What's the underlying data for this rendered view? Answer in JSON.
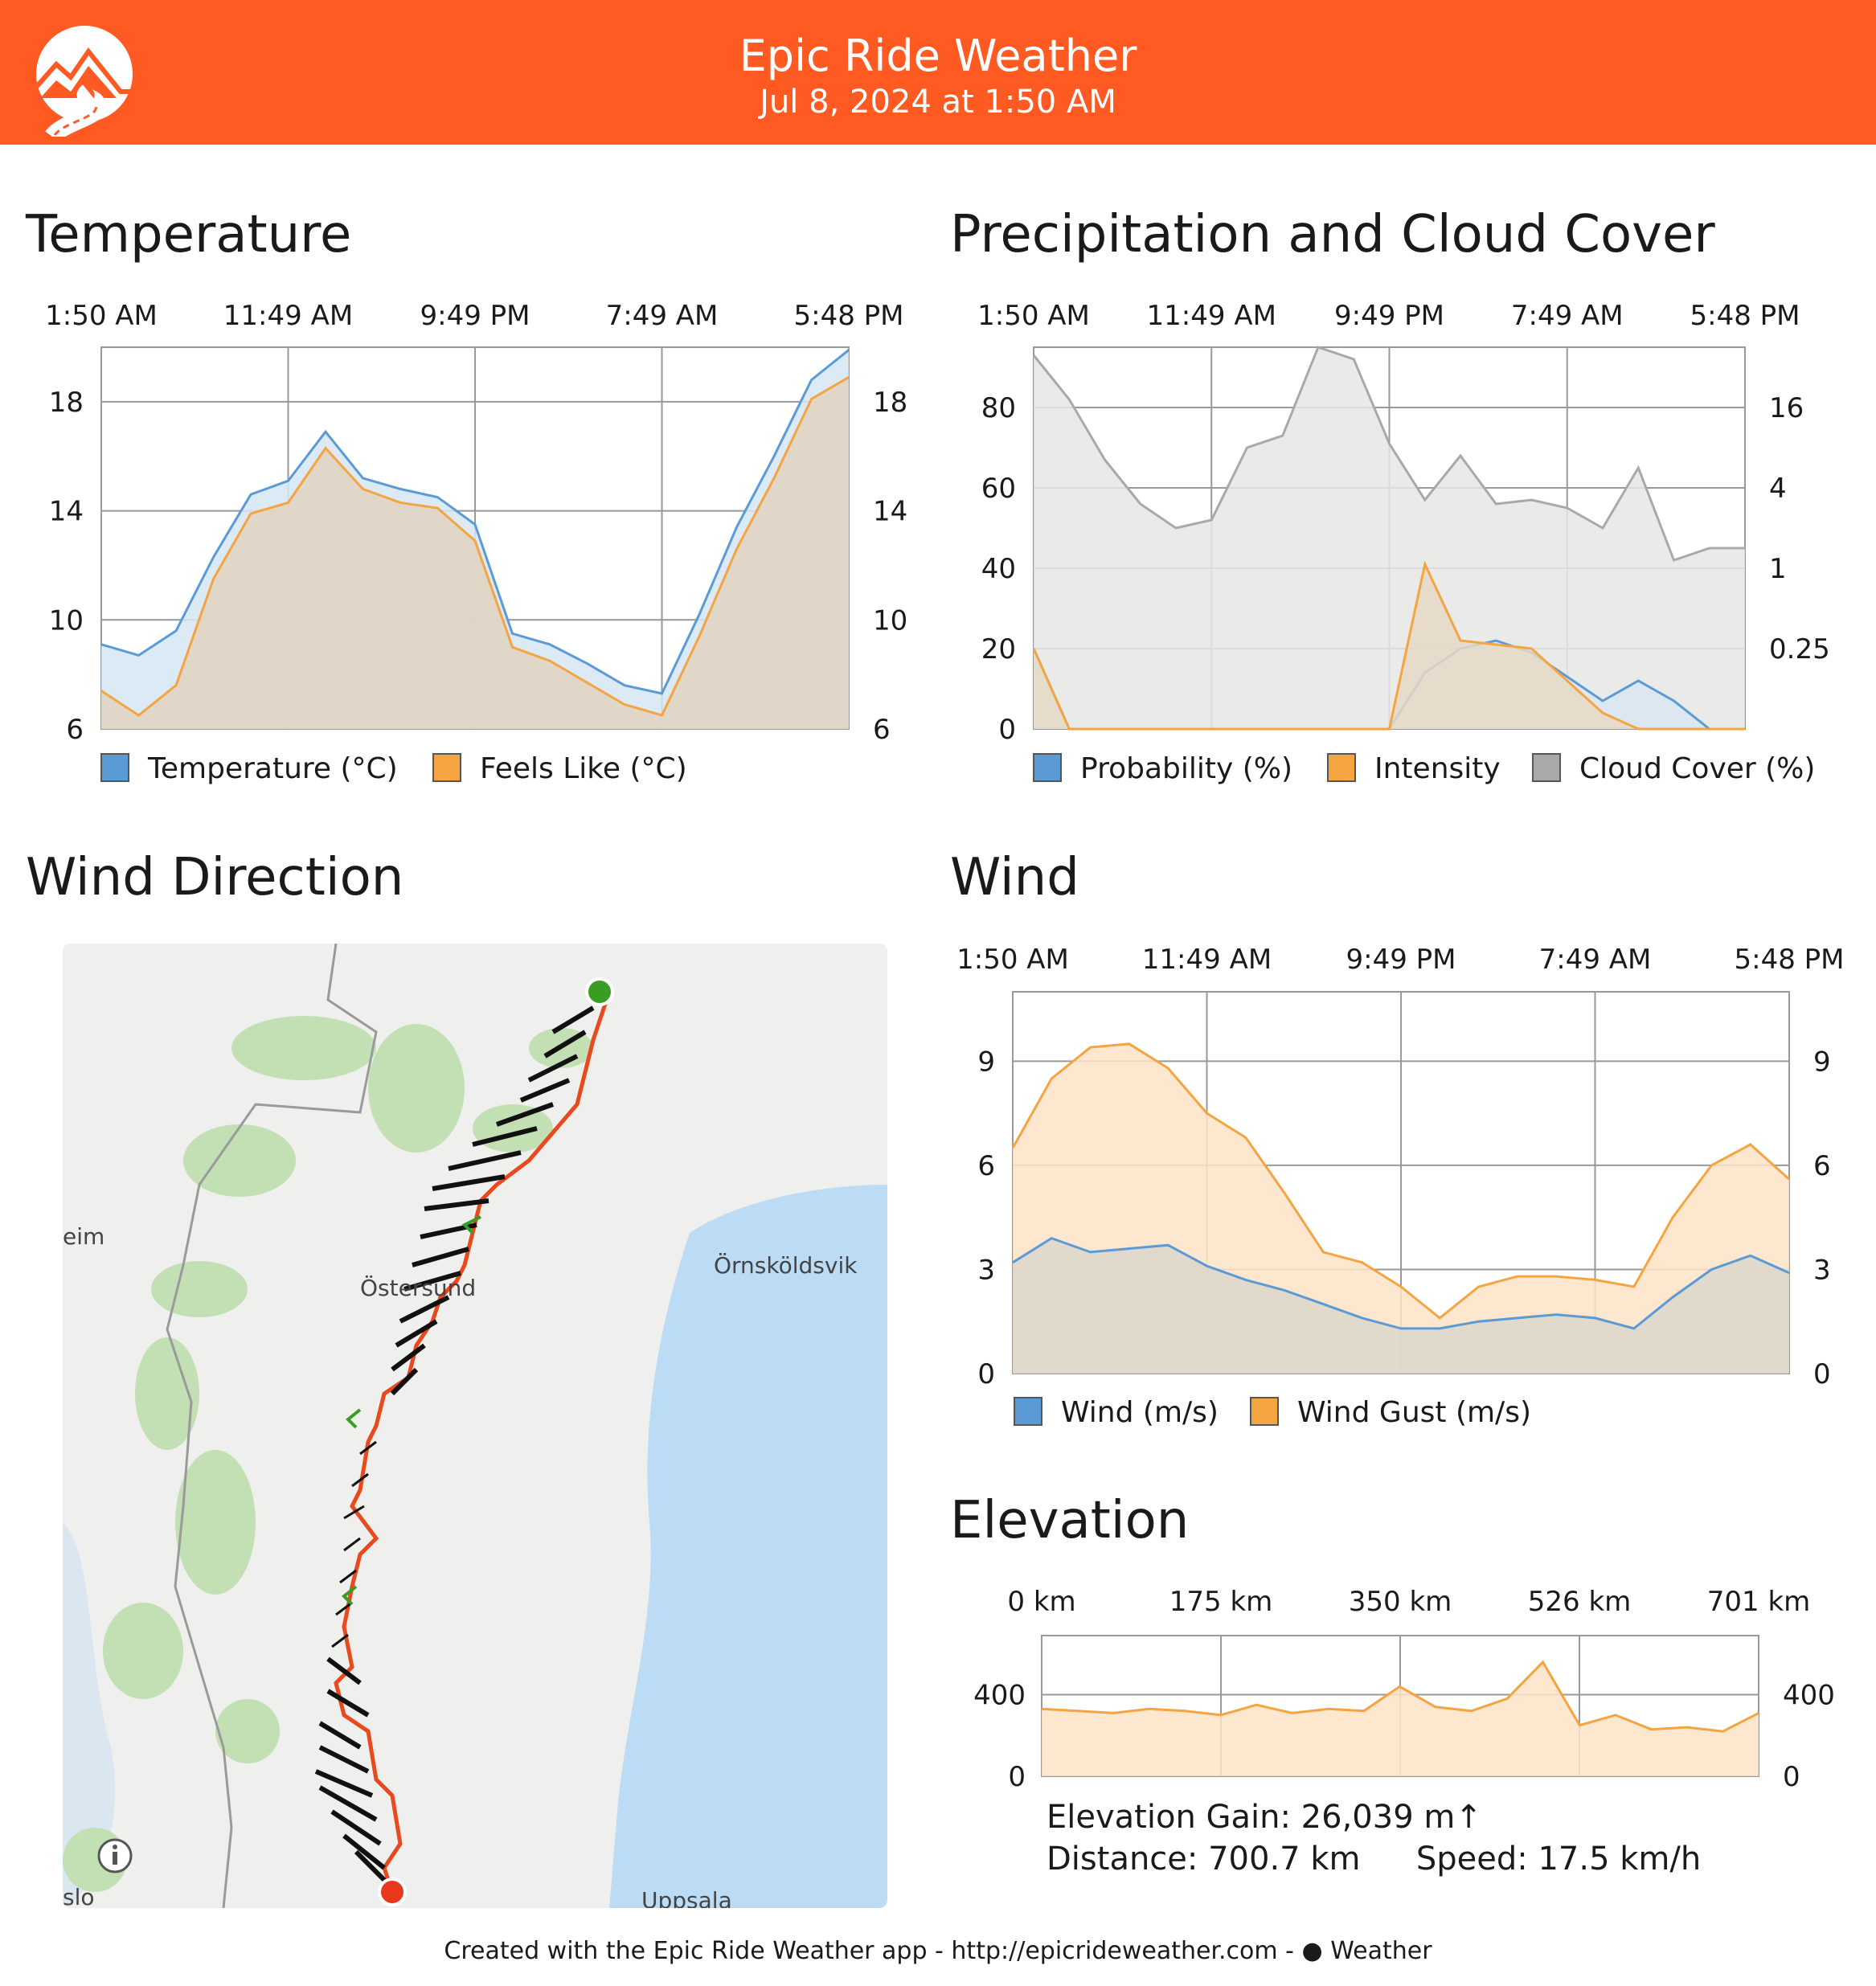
{
  "header": {
    "title": "Epic Ride Weather",
    "date": "Jul 8, 2024 at 1:50 AM",
    "color": "#fe5a21"
  },
  "sections": {
    "temperature": "Temperature",
    "precipitation": "Precipitation and Cloud Cover",
    "wind_direction": "Wind Direction",
    "wind": "Wind",
    "elevation": "Elevation"
  },
  "map": {
    "labels": [
      "Östersund",
      "Örnsköldsvik",
      "eim",
      "slo",
      "Uppsala"
    ],
    "info_icon": "info-icon",
    "start_marker_color": "#3a9d23",
    "end_marker_color": "#e8391d",
    "route_color": "#e8491d"
  },
  "elevation_stats": {
    "gain": "Elevation Gain: 26,039 m↑",
    "distance": "Distance: 700.7 km",
    "speed": "Speed: 17.5 km/h"
  },
  "footer": {
    "text_prefix": "Created with the Epic Ride Weather app - http://epicrideweather.com - ",
    "apple_icon": "apple-icon",
    "text_suffix": "Weather"
  },
  "chart_data": [
    {
      "id": "temperature",
      "type": "area",
      "title": "Temperature",
      "x_ticks": [
        "1:50 AM",
        "11:49 AM",
        "9:49 PM",
        "7:49 AM",
        "5:48 PM"
      ],
      "ylim": [
        6,
        20
      ],
      "y_ticks": [
        6,
        10,
        14,
        18
      ],
      "y_ticks_right": [
        6,
        10,
        14,
        18
      ],
      "x": [
        0,
        2,
        4,
        6,
        8,
        10,
        12,
        14,
        16,
        18,
        20,
        22,
        24,
        26,
        28,
        30,
        32,
        34,
        36,
        38,
        40
      ],
      "series": [
        {
          "name": "Temperature (°C)",
          "color": "#5b9bd5",
          "values": [
            9.1,
            8.7,
            9.6,
            12.3,
            14.6,
            15.1,
            16.9,
            15.2,
            14.8,
            14.5,
            13.5,
            9.5,
            9.1,
            8.4,
            7.6,
            7.3,
            10.2,
            13.4,
            16.0,
            18.8,
            19.9
          ]
        },
        {
          "name": "Feels Like (°C)",
          "color": "#f5a442",
          "values": [
            7.4,
            6.5,
            7.6,
            11.5,
            13.9,
            14.3,
            16.3,
            14.8,
            14.3,
            14.1,
            12.9,
            9.0,
            8.5,
            7.7,
            6.9,
            6.5,
            9.4,
            12.6,
            15.2,
            18.1,
            18.9
          ]
        }
      ]
    },
    {
      "id": "precipitation",
      "type": "area",
      "title": "Precipitation and Cloud Cover",
      "x_ticks": [
        "1:50 AM",
        "11:49 AM",
        "9:49 PM",
        "7:49 AM",
        "5:48 PM"
      ],
      "ylim": [
        0,
        95
      ],
      "y_ticks": [
        0,
        20,
        40,
        60,
        80
      ],
      "y_ticks_right": [
        "0.25",
        "1",
        "4",
        "16"
      ],
      "x": [
        0,
        2,
        4,
        6,
        8,
        10,
        12,
        14,
        16,
        18,
        20,
        22,
        24,
        26,
        28,
        30,
        32,
        34,
        36,
        38,
        40
      ],
      "series": [
        {
          "name": "Probability (%)",
          "color": "#5b9bd5",
          "values": [
            20,
            0,
            0,
            0,
            0,
            0,
            0,
            0,
            0,
            0,
            0,
            14,
            20,
            22,
            19,
            13,
            7,
            12,
            7,
            0,
            0
          ]
        },
        {
          "name": "Intensity",
          "color": "#f5a442",
          "values": [
            20,
            0,
            0,
            0,
            0,
            0,
            0,
            0,
            0,
            0,
            0,
            41,
            22,
            21,
            20,
            12,
            4,
            0,
            0,
            0,
            0
          ]
        },
        {
          "name": "Cloud Cover (%)",
          "color": "#a9a9a9",
          "values": [
            93,
            82,
            67,
            56,
            50,
            52,
            70,
            73,
            96,
            92,
            71,
            57,
            68,
            56,
            57,
            55,
            50,
            65,
            42,
            45,
            45
          ]
        }
      ]
    },
    {
      "id": "wind",
      "type": "area",
      "title": "Wind",
      "x_ticks": [
        "1:50 AM",
        "11:49 AM",
        "9:49 PM",
        "7:49 AM",
        "5:48 PM"
      ],
      "ylim": [
        0,
        11
      ],
      "y_ticks": [
        0,
        3,
        6,
        9
      ],
      "y_ticks_right": [
        0,
        3,
        6,
        9
      ],
      "x": [
        0,
        2,
        4,
        6,
        8,
        10,
        12,
        14,
        16,
        18,
        20,
        22,
        24,
        26,
        28,
        30,
        32,
        34,
        36,
        38,
        40
      ],
      "series": [
        {
          "name": "Wind (m/s)",
          "color": "#5b9bd5",
          "values": [
            3.2,
            3.9,
            3.5,
            3.6,
            3.7,
            3.1,
            2.7,
            2.4,
            2.0,
            1.6,
            1.3,
            1.3,
            1.5,
            1.6,
            1.7,
            1.6,
            1.3,
            2.2,
            3.0,
            3.4,
            2.9
          ]
        },
        {
          "name": "Wind Gust (m/s)",
          "color": "#f5a442",
          "values": [
            6.5,
            8.5,
            9.4,
            9.5,
            8.8,
            7.5,
            6.8,
            5.2,
            3.5,
            3.2,
            2.5,
            1.6,
            2.5,
            2.8,
            2.8,
            2.7,
            2.5,
            4.5,
            6.0,
            6.6,
            5.6
          ]
        }
      ]
    },
    {
      "id": "elevation",
      "type": "area",
      "title": "Elevation",
      "x_ticks": [
        "0 km",
        "175 km",
        "350 km",
        "526 km",
        "701 km"
      ],
      "ylim": [
        0,
        690
      ],
      "y_ticks": [
        0,
        400
      ],
      "y_ticks_right": [
        0,
        400
      ],
      "x": [
        0,
        35,
        70,
        105,
        140,
        175,
        210,
        245,
        280,
        315,
        350,
        385,
        420,
        455,
        490,
        526,
        561,
        596,
        631,
        666,
        701
      ],
      "series": [
        {
          "name": "Elevation",
          "color": "#f5a442",
          "values": [
            330,
            320,
            310,
            330,
            320,
            300,
            350,
            310,
            330,
            320,
            440,
            340,
            320,
            380,
            560,
            250,
            300,
            230,
            240,
            220,
            310
          ]
        }
      ]
    }
  ]
}
